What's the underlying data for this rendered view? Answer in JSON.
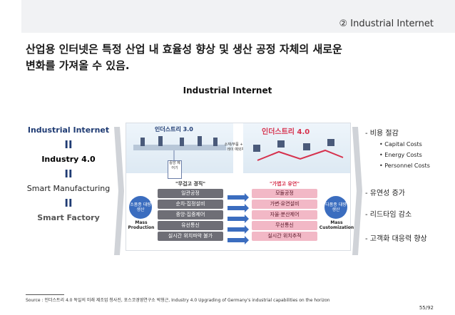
{
  "header": {
    "section_title": "② Industrial Internet"
  },
  "headline": {
    "line1": "산업용 인터넷은 특정 산업 내 효율성 향상 및 생산 공정 자체의 새로운",
    "line2": "변화를 가져올 수 있음."
  },
  "main": {
    "title": "Industrial Internet"
  },
  "equivalence": {
    "items": [
      "Industrial Internet",
      "Industry 4.0",
      "Smart Manufacturing",
      "Smart Factory"
    ],
    "separator": "II"
  },
  "diagram": {
    "left_title": "인더스트리 3.0",
    "right_title": "인더스트리 4.0",
    "controller_label": "중앙 제어기",
    "cloud_label": "소재/부품 + 시뮬레이 예외처리",
    "left_head": "\"무겁고 경직\"",
    "right_head": "\"가볍고 유연\"",
    "left_rows": [
      "일관공정",
      "순차·집정설비",
      "중앙·집중제어",
      "유선통신",
      "실시간 위치파악 불가"
    ],
    "right_rows": [
      "모듈공정",
      "가변·유연설비",
      "자율·분산제어",
      "무선통신",
      "실시간 위치추적"
    ],
    "left_circle": "소품종 대량생산",
    "right_circle": "다품종 대량생산",
    "left_caption": "Mass Production",
    "right_caption": "Mass Customization"
  },
  "benefits": {
    "items": [
      {
        "label": "- 비용 절감",
        "subs": [
          "• Capital Costs",
          "• Energy Costs",
          "• Personnel Costs"
        ]
      },
      {
        "label": "- 유연성 증가",
        "subs": []
      },
      {
        "label": "- 리드타임 감소",
        "subs": []
      },
      {
        "label": "- 고객화 대응력 향상",
        "subs": []
      }
    ]
  },
  "footer": {
    "source": "Source : 인더스트리 4.0 독일의 미래 제조업 청사진, 포스코경영연구소 박형근, Industry 4.0 Upgrading of Germany's industrial capabilities on the horizon",
    "page": "55/92"
  },
  "colors": {
    "accent": "#1f3b73",
    "arrow_gray": "#d0d3d8",
    "pink": "#f2b8c6",
    "red": "#d6314d"
  }
}
